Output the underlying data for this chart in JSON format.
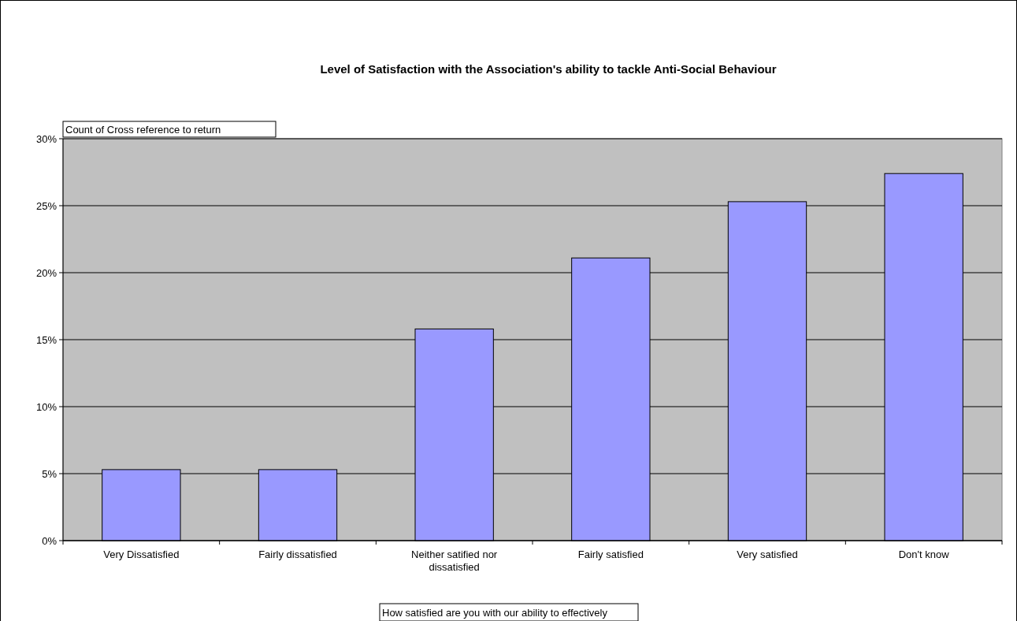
{
  "chart_data": {
    "type": "bar",
    "title": "Level of Satisfaction with the Association's ability to tackle Anti-Social Behaviour",
    "categories": [
      "Very Dissatisfied",
      "Fairly dissatisfied",
      "Neither satified nor dissatisfied",
      "Fairly satisfied",
      "Very satisfied",
      "Don't know"
    ],
    "values": [
      5.3,
      5.3,
      15.8,
      21.1,
      25.3,
      27.4
    ],
    "color": "#9999ff",
    "ylim": [
      0,
      30
    ],
    "yticks": [
      {
        "value": 0,
        "label": "0%"
      },
      {
        "value": 5,
        "label": "5%"
      },
      {
        "value": 10,
        "label": "10%"
      },
      {
        "value": 15,
        "label": "15%"
      },
      {
        "value": 20,
        "label": "20%"
      },
      {
        "value": 25,
        "label": "25%"
      },
      {
        "value": 30,
        "label": "30%"
      }
    ],
    "grid": "y",
    "annotations": [
      "Count of Cross reference to return",
      "How satisfied are you with our ability to effectively"
    ]
  }
}
